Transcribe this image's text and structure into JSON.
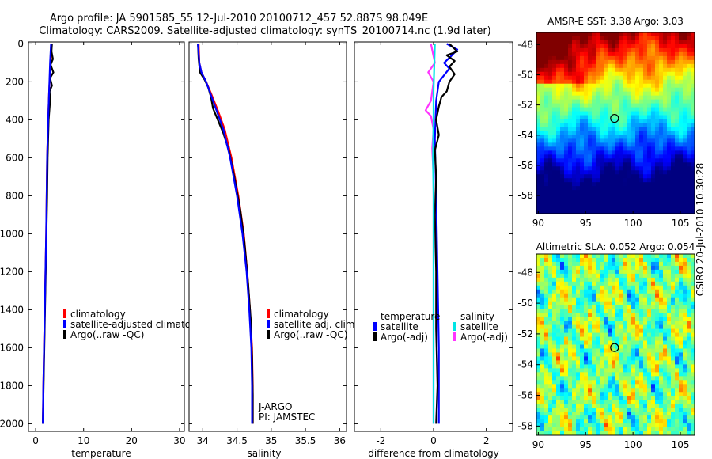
{
  "title": {
    "line1": "Argo profile: JA 5901585_55 12-Jul-2010 20100712_457 52.887S 98.049E",
    "line2": "Climatology: CARS2009. Satellite-adjusted climatology: synTS_20100714.nc (1.9d later)"
  },
  "side_text": "CSIRO 20-Jul-2010 10:30:28",
  "chart_data": [
    {
      "id": "temperature",
      "type": "line",
      "xlabel": "temperature",
      "ylabel": "",
      "xlim": [
        -1.5,
        31
      ],
      "ylim": [
        2040,
        -10
      ],
      "xticks": [
        0,
        10,
        20,
        30
      ],
      "xtick_labels": [
        "0",
        "10",
        "20",
        "30"
      ],
      "yticks": [
        0,
        200,
        400,
        600,
        800,
        1000,
        1200,
        1400,
        1600,
        1800,
        2000
      ],
      "ytick_labels": [
        "0",
        "200",
        "400",
        "600",
        "800",
        "1000",
        "1200",
        "1400",
        "1600",
        "1800",
        "2000"
      ],
      "legend": [
        "climatology",
        "satellite-adjusted climatology",
        "Argo(..raw -QC)"
      ],
      "series": [
        {
          "name": "climatology",
          "color": "#ff0000",
          "points": [
            [
              3.3,
              0
            ],
            [
              3.2,
              50
            ],
            [
              3.1,
              100
            ],
            [
              2.8,
              250
            ],
            [
              2.6,
              400
            ],
            [
              2.4,
              600
            ],
            [
              2.3,
              800
            ],
            [
              2.2,
              1000
            ],
            [
              2.05,
              1200
            ],
            [
              1.9,
              1400
            ],
            [
              1.75,
              1600
            ],
            [
              1.6,
              1800
            ],
            [
              1.5,
              2000
            ]
          ]
        },
        {
          "name": "Argo(..raw -QC)",
          "color": "#000000",
          "points": [
            [
              3.4,
              0
            ],
            [
              3.3,
              40
            ],
            [
              3.6,
              80
            ],
            [
              3.1,
              110
            ],
            [
              3.7,
              150
            ],
            [
              3.0,
              180
            ],
            [
              3.4,
              220
            ],
            [
              2.9,
              250
            ],
            [
              3.0,
              300
            ],
            [
              2.7,
              400
            ],
            [
              2.5,
              600
            ],
            [
              2.4,
              800
            ],
            [
              2.25,
              1000
            ],
            [
              2.1,
              1200
            ],
            [
              1.95,
              1400
            ],
            [
              1.8,
              1600
            ],
            [
              1.65,
              1800
            ],
            [
              1.5,
              2000
            ]
          ]
        },
        {
          "name": "satellite-adjusted climatology",
          "color": "#0000ff",
          "points": [
            [
              3.2,
              0
            ],
            [
              3.1,
              50
            ],
            [
              3.0,
              100
            ],
            [
              2.8,
              250
            ],
            [
              2.6,
              400
            ],
            [
              2.4,
              600
            ],
            [
              2.3,
              800
            ],
            [
              2.2,
              1000
            ],
            [
              2.05,
              1200
            ],
            [
              1.9,
              1400
            ],
            [
              1.75,
              1600
            ],
            [
              1.6,
              1800
            ],
            [
              1.5,
              2000
            ]
          ]
        }
      ]
    },
    {
      "id": "salinity",
      "type": "line",
      "xlabel": "salinity",
      "ylabel": "",
      "xlim": [
        33.8,
        36.1
      ],
      "ylim": [
        2040,
        -10
      ],
      "xticks": [
        34,
        34.5,
        35,
        35.5,
        36
      ],
      "xtick_labels": [
        "34",
        "34.5",
        "35",
        "35.5",
        "36"
      ],
      "legend": [
        "climatology",
        "satellite adj. clim.",
        "Argo(..raw -QC)"
      ],
      "notes": [
        "J-ARGO",
        "PI: JAMSTEC"
      ],
      "series": [
        {
          "name": "climatology",
          "color": "#ff0000",
          "points": [
            [
              33.94,
              0
            ],
            [
              33.95,
              100
            ],
            [
              33.98,
              150
            ],
            [
              34.05,
              200
            ],
            [
              34.12,
              260
            ],
            [
              34.22,
              350
            ],
            [
              34.32,
              450
            ],
            [
              34.42,
              600
            ],
            [
              34.52,
              800
            ],
            [
              34.6,
              1000
            ],
            [
              34.65,
              1200
            ],
            [
              34.69,
              1400
            ],
            [
              34.72,
              1600
            ],
            [
              34.73,
              1800
            ],
            [
              34.73,
              2000
            ]
          ]
        },
        {
          "name": "Argo(..raw -QC)",
          "color": "#000000",
          "points": [
            [
              33.93,
              0
            ],
            [
              33.94,
              80
            ],
            [
              33.96,
              150
            ],
            [
              34.03,
              190
            ],
            [
              34.08,
              230
            ],
            [
              34.12,
              280
            ],
            [
              34.15,
              340
            ],
            [
              34.22,
              400
            ],
            [
              34.3,
              470
            ],
            [
              34.38,
              560
            ],
            [
              34.46,
              700
            ],
            [
              34.55,
              880
            ],
            [
              34.61,
              1050
            ],
            [
              34.66,
              1250
            ],
            [
              34.7,
              1450
            ],
            [
              34.72,
              1650
            ],
            [
              34.73,
              1850
            ],
            [
              34.73,
              2000
            ]
          ]
        },
        {
          "name": "satellite adj. clim.",
          "color": "#0000ff",
          "points": [
            [
              33.93,
              0
            ],
            [
              33.95,
              100
            ],
            [
              33.98,
              150
            ],
            [
              34.05,
              200
            ],
            [
              34.11,
              260
            ],
            [
              34.2,
              350
            ],
            [
              34.3,
              450
            ],
            [
              34.4,
              600
            ],
            [
              34.5,
              800
            ],
            [
              34.58,
              1000
            ],
            [
              34.64,
              1200
            ],
            [
              34.68,
              1400
            ],
            [
              34.71,
              1600
            ],
            [
              34.72,
              1800
            ],
            [
              34.72,
              2000
            ]
          ]
        }
      ]
    },
    {
      "id": "difference",
      "type": "line",
      "xlabel": "difference from climatology",
      "ylabel": "",
      "xlim": [
        -3,
        3
      ],
      "ylim": [
        2040,
        -10
      ],
      "xticks": [
        -2,
        0,
        2
      ],
      "xtick_labels": [
        "-2",
        "0",
        "2"
      ],
      "legend_groups": [
        {
          "title": "temperature",
          "entries": [
            "satellite",
            "Argo(-adj)"
          ]
        },
        {
          "title": "salinity",
          "entries": [
            "satellite",
            "Argo(-adj)"
          ]
        }
      ],
      "series": [
        {
          "name": "temperature satellite",
          "color": "#0000ff",
          "points": [
            [
              0.5,
              0
            ],
            [
              0.9,
              30
            ],
            [
              0.7,
              60
            ],
            [
              0.4,
              100
            ],
            [
              0.6,
              130
            ],
            [
              0.2,
              200
            ],
            [
              0.1,
              300
            ],
            [
              0.05,
              500
            ],
            [
              0.1,
              800
            ],
            [
              0.15,
              1200
            ],
            [
              0.2,
              1600
            ],
            [
              0.2,
              2000
            ]
          ]
        },
        {
          "name": "temperature Argo(-adj)",
          "color": "#000000",
          "points": [
            [
              0.6,
              0
            ],
            [
              0.9,
              40
            ],
            [
              0.5,
              60
            ],
            [
              0.8,
              90
            ],
            [
              0.6,
              120
            ],
            [
              0.8,
              160
            ],
            [
              0.6,
              200
            ],
            [
              0.5,
              250
            ],
            [
              0.3,
              280
            ],
            [
              0.2,
              330
            ],
            [
              0.1,
              400
            ],
            [
              0.2,
              480
            ],
            [
              0.05,
              560
            ],
            [
              0.1,
              700
            ],
            [
              0.05,
              900
            ],
            [
              0.1,
              1200
            ],
            [
              0.1,
              1500
            ],
            [
              0.15,
              1800
            ],
            [
              0.1,
              2000
            ]
          ]
        },
        {
          "name": "salinity Argo(-adj)",
          "color": "#ff33ff",
          "points": [
            [
              -0.1,
              0
            ],
            [
              0.05,
              100
            ],
            [
              -0.2,
              150
            ],
            [
              0.0,
              200
            ],
            [
              -0.1,
              300
            ],
            [
              -0.3,
              350
            ],
            [
              -0.1,
              380
            ],
            [
              0.0,
              450
            ],
            [
              -0.05,
              550
            ],
            [
              0.0,
              700
            ],
            [
              0.0,
              2000
            ]
          ]
        },
        {
          "name": "salinity satellite",
          "color": "#00e5e5",
          "points": [
            [
              0.05,
              0
            ],
            [
              0.03,
              100
            ],
            [
              0.0,
              250
            ],
            [
              0.0,
              400
            ],
            [
              -0.02,
              600
            ],
            [
              0.0,
              800
            ],
            [
              0.0,
              1000
            ],
            [
              0.0,
              1300
            ],
            [
              0.0,
              1600
            ],
            [
              0.0,
              2000
            ]
          ]
        }
      ]
    },
    {
      "id": "amsre_sst",
      "type": "heatmap",
      "title": "AMSR-E SST: 3.38 Argo: 3.03",
      "xlim": [
        89.8,
        106.5
      ],
      "ylim": [
        -59.2,
        -47.2
      ],
      "xticks": [
        90,
        95,
        100,
        105
      ],
      "xtick_labels": [
        "90",
        "95",
        "100",
        "105"
      ],
      "yticks": [
        -48,
        -50,
        -52,
        -54,
        -56,
        -58
      ],
      "ytick_labels": [
        "-48",
        "-50",
        "-52",
        "-54",
        "-56",
        "-58"
      ],
      "marker": [
        98.05,
        -52.89
      ]
    },
    {
      "id": "altimetric_sla",
      "type": "heatmap",
      "title": "Altimetric SLA: 0.052 Argo: 0.054",
      "xlim": [
        89.8,
        106.5
      ],
      "ylim": [
        -58.6,
        -46.8
      ],
      "xticks": [
        90,
        95,
        100,
        105
      ],
      "xtick_labels": [
        "90",
        "95",
        "100",
        "105"
      ],
      "yticks": [
        -48,
        -50,
        -52,
        -54,
        -56,
        -58
      ],
      "ytick_labels": [
        "-48",
        "-50",
        "-52",
        "-54",
        "-56",
        "-58"
      ],
      "marker": [
        98.05,
        -52.89
      ]
    }
  ]
}
